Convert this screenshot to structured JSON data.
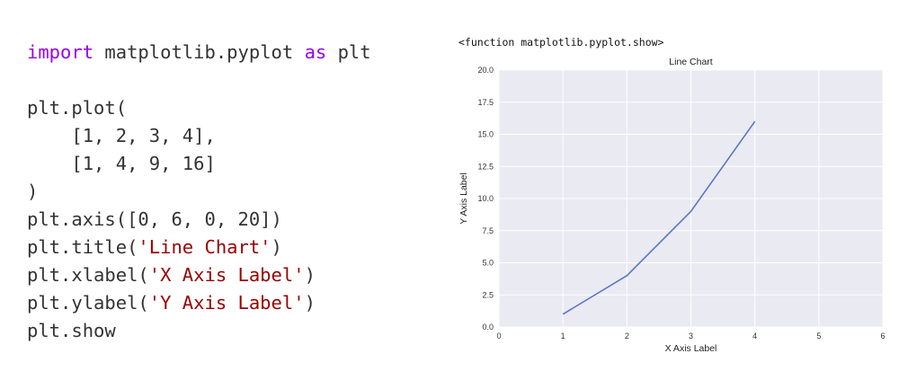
{
  "code": {
    "lines": [
      [
        {
          "t": "import",
          "c": "kw"
        },
        {
          "t": " matplotlib.pyplot ",
          "c": ""
        },
        {
          "t": "as",
          "c": "kw"
        },
        {
          "t": " plt",
          "c": ""
        }
      ],
      [],
      [
        {
          "t": "plt.plot(",
          "c": ""
        }
      ],
      [
        {
          "t": "    [1, 2, 3, 4],",
          "c": ""
        }
      ],
      [
        {
          "t": "    [1, 4, 9, 16]",
          "c": ""
        }
      ],
      [
        {
          "t": ")",
          "c": ""
        }
      ],
      [
        {
          "t": "plt.axis([0, 6, 0, 20])",
          "c": ""
        }
      ],
      [
        {
          "t": "plt.title(",
          "c": ""
        },
        {
          "t": "'Line Chart'",
          "c": "str"
        },
        {
          "t": ")",
          "c": ""
        }
      ],
      [
        {
          "t": "plt.xlabel(",
          "c": ""
        },
        {
          "t": "'X Axis Label'",
          "c": "str"
        },
        {
          "t": ")",
          "c": ""
        }
      ],
      [
        {
          "t": "plt.ylabel(",
          "c": ""
        },
        {
          "t": "'Y Axis Label'",
          "c": "str"
        },
        {
          "t": ")",
          "c": ""
        }
      ],
      [
        {
          "t": "plt.show",
          "c": ""
        }
      ]
    ]
  },
  "output": {
    "header": "<function matplotlib.pyplot.show>"
  },
  "colors": {
    "plot_bg": "#eaeaf2",
    "grid": "#ffffff",
    "line": "#5b76c0",
    "keyword": "#9900ee",
    "string": "#990000"
  },
  "chart_data": {
    "type": "line",
    "title": "Line Chart",
    "xlabel": "X Axis Label",
    "ylabel": "Y Axis Label",
    "xlim": [
      0,
      6
    ],
    "ylim": [
      0,
      20
    ],
    "xticks": [
      "0",
      "1",
      "2",
      "3",
      "4",
      "5",
      "6"
    ],
    "yticks": [
      "0.0",
      "2.5",
      "5.0",
      "7.5",
      "10.0",
      "12.5",
      "15.0",
      "17.5",
      "20.0"
    ],
    "grid": true,
    "series": [
      {
        "x": [
          1,
          2,
          3,
          4
        ],
        "y": [
          1,
          4,
          9,
          16
        ]
      }
    ]
  }
}
